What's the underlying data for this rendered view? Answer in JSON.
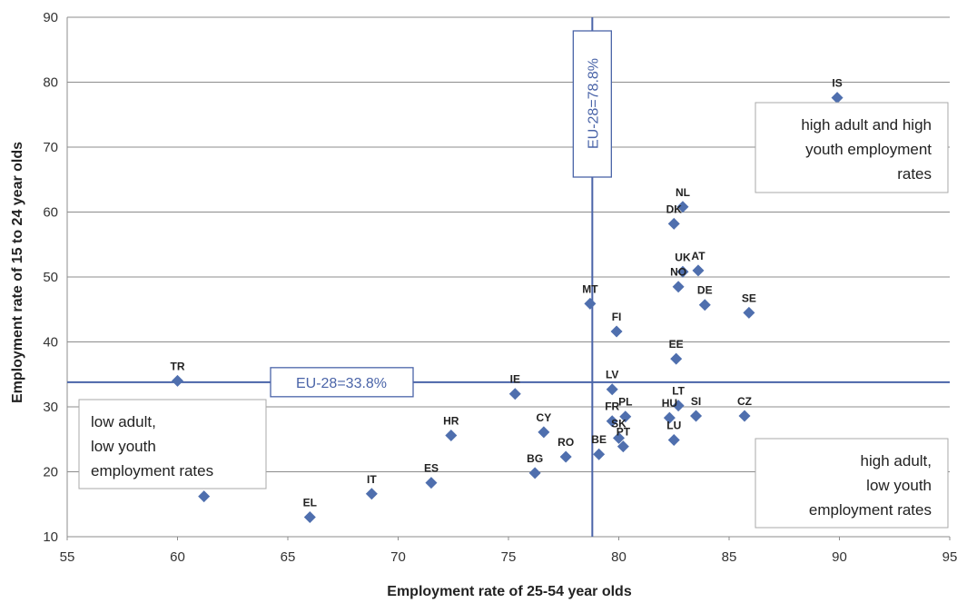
{
  "chart_data": {
    "type": "scatter",
    "xlabel": "Employment rate of 25-54 year olds",
    "ylabel": "Employment rate of 15 to 24 year olds",
    "xlim": [
      55,
      95
    ],
    "ylim": [
      10,
      90
    ],
    "xticks": [
      55,
      60,
      65,
      70,
      75,
      80,
      85,
      90,
      95
    ],
    "yticks": [
      10,
      20,
      30,
      40,
      50,
      60,
      70,
      80,
      90
    ],
    "grid": "horizontal",
    "marker_color": "#4f6fae",
    "reference_line_color": "#4a64a8",
    "reference_lines": {
      "vertical": {
        "value": 78.8,
        "label": "EU-28=78.8%"
      },
      "horizontal": {
        "value": 33.8,
        "label": "EU-28=33.8%"
      }
    },
    "annotations": [
      {
        "lines": [
          "high adult and high",
          "youth employment",
          "rates"
        ],
        "quadrant": "top-right"
      },
      {
        "lines": [
          "low adult,",
          "low youth",
          "employment rates"
        ],
        "quadrant": "bottom-left"
      },
      {
        "lines": [
          "high adult,",
          "low youth",
          "employment rates"
        ],
        "quadrant": "bottom-right"
      }
    ],
    "points": [
      {
        "label": "IS",
        "x": 89.9,
        "y": 77.6
      },
      {
        "label": "NL",
        "x": 82.9,
        "y": 60.8
      },
      {
        "label": "DK",
        "x": 82.5,
        "y": 58.2
      },
      {
        "label": "UK",
        "x": 82.9,
        "y": 50.8
      },
      {
        "label": "AT",
        "x": 83.6,
        "y": 51.0
      },
      {
        "label": "NO",
        "x": 82.7,
        "y": 48.5
      },
      {
        "label": "DE",
        "x": 83.9,
        "y": 45.7
      },
      {
        "label": "SE",
        "x": 85.9,
        "y": 44.5
      },
      {
        "label": "MT",
        "x": 78.7,
        "y": 45.9
      },
      {
        "label": "FI",
        "x": 79.9,
        "y": 41.6
      },
      {
        "label": "EE",
        "x": 82.6,
        "y": 37.4
      },
      {
        "label": "TR",
        "x": 60.0,
        "y": 34.0
      },
      {
        "label": "IE",
        "x": 75.3,
        "y": 32.0
      },
      {
        "label": "LV",
        "x": 79.7,
        "y": 32.7
      },
      {
        "label": "LT",
        "x": 82.7,
        "y": 30.2
      },
      {
        "label": "FR",
        "x": 79.7,
        "y": 27.8
      },
      {
        "label": "PL",
        "x": 80.3,
        "y": 28.5
      },
      {
        "label": "HU",
        "x": 82.3,
        "y": 28.3
      },
      {
        "label": "SI",
        "x": 83.5,
        "y": 28.6
      },
      {
        "label": "CZ",
        "x": 85.7,
        "y": 28.6
      },
      {
        "label": "CY",
        "x": 76.6,
        "y": 26.1
      },
      {
        "label": "HR",
        "x": 72.4,
        "y": 25.6
      },
      {
        "label": "SK",
        "x": 80.0,
        "y": 25.2
      },
      {
        "label": "PT",
        "x": 80.2,
        "y": 23.9
      },
      {
        "label": "LU",
        "x": 82.5,
        "y": 24.9
      },
      {
        "label": "RO",
        "x": 77.6,
        "y": 22.3
      },
      {
        "label": "BE",
        "x": 79.1,
        "y": 22.7
      },
      {
        "label": "BG",
        "x": 76.2,
        "y": 19.8
      },
      {
        "label": "ES",
        "x": 71.5,
        "y": 18.3
      },
      {
        "label": "IT",
        "x": 68.8,
        "y": 16.6
      },
      {
        "label": "EL",
        "x": 66.0,
        "y": 13.0
      },
      {
        "label": "",
        "x": 61.2,
        "y": 16.2
      }
    ]
  }
}
